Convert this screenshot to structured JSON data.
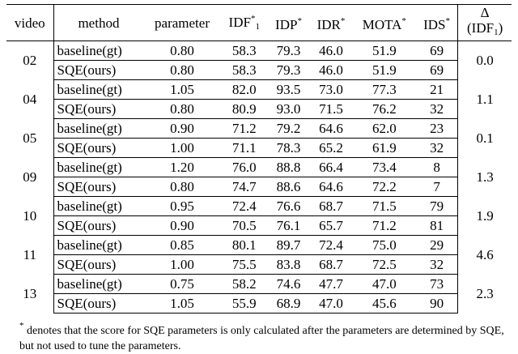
{
  "table": {
    "header": [
      {
        "text": "video"
      },
      {
        "text": "method"
      },
      {
        "text": "parameter"
      },
      {
        "text": "IDF",
        "sup": "*",
        "sub": "1"
      },
      {
        "text": "IDP",
        "sup": "*"
      },
      {
        "text": "IDR",
        "sup": "*"
      },
      {
        "text": "MOTA",
        "sup": "*"
      },
      {
        "text": "IDS",
        "sup": "*"
      },
      {
        "text": "Δ",
        "line2": "(IDF",
        "sub2": "1",
        "end2": ")"
      }
    ],
    "groups": [
      {
        "video": "02",
        "delta": "0.0",
        "rows": [
          [
            "baseline(gt)",
            "0.80",
            "58.3",
            "79.3",
            "46.0",
            "51.9",
            "69"
          ],
          [
            "SQE(ours)",
            "0.80",
            "58.3",
            "79.3",
            "46.0",
            "51.9",
            "69"
          ]
        ]
      },
      {
        "video": "04",
        "delta": "1.1",
        "rows": [
          [
            "baseline(gt)",
            "1.05",
            "82.0",
            "93.5",
            "73.0",
            "77.3",
            "21"
          ],
          [
            "SQE(ours)",
            "0.80",
            "80.9",
            "93.0",
            "71.5",
            "76.2",
            "32"
          ]
        ]
      },
      {
        "video": "05",
        "delta": "0.1",
        "rows": [
          [
            "baseline(gt)",
            "0.90",
            "71.2",
            "79.2",
            "64.6",
            "62.0",
            "23"
          ],
          [
            "SQE(ours)",
            "1.00",
            "71.1",
            "78.3",
            "65.2",
            "61.9",
            "32"
          ]
        ]
      },
      {
        "video": "09",
        "delta": "1.3",
        "rows": [
          [
            "baseline(gt)",
            "1.20",
            "76.0",
            "88.8",
            "66.4",
            "73.4",
            "8"
          ],
          [
            "SQE(ours)",
            "0.80",
            "74.7",
            "88.6",
            "64.6",
            "72.2",
            "7"
          ]
        ]
      },
      {
        "video": "10",
        "delta": "1.9",
        "rows": [
          [
            "baseline(gt)",
            "0.95",
            "72.4",
            "76.6",
            "68.7",
            "71.5",
            "79"
          ],
          [
            "SQE(ours)",
            "0.90",
            "70.5",
            "76.1",
            "65.7",
            "71.2",
            "81"
          ]
        ]
      },
      {
        "video": "11",
        "delta": "4.6",
        "rows": [
          [
            "baseline(gt)",
            "0.85",
            "80.1",
            "89.7",
            "72.4",
            "75.0",
            "29"
          ],
          [
            "SQE(ours)",
            "1.00",
            "75.5",
            "83.8",
            "68.7",
            "72.5",
            "32"
          ]
        ]
      },
      {
        "video": "13",
        "delta": "2.3",
        "rows": [
          [
            "baseline(gt)",
            "0.75",
            "58.2",
            "74.6",
            "47.7",
            "47.0",
            "73"
          ],
          [
            "SQE(ours)",
            "1.05",
            "55.9",
            "68.9",
            "47.0",
            "45.6",
            "90"
          ]
        ]
      }
    ]
  },
  "footnote": {
    "mark": "*",
    "text": "denotes that the score for SQE parameters is only calculated after the parameters are determined by SQE, but not used to tune the parameters."
  }
}
